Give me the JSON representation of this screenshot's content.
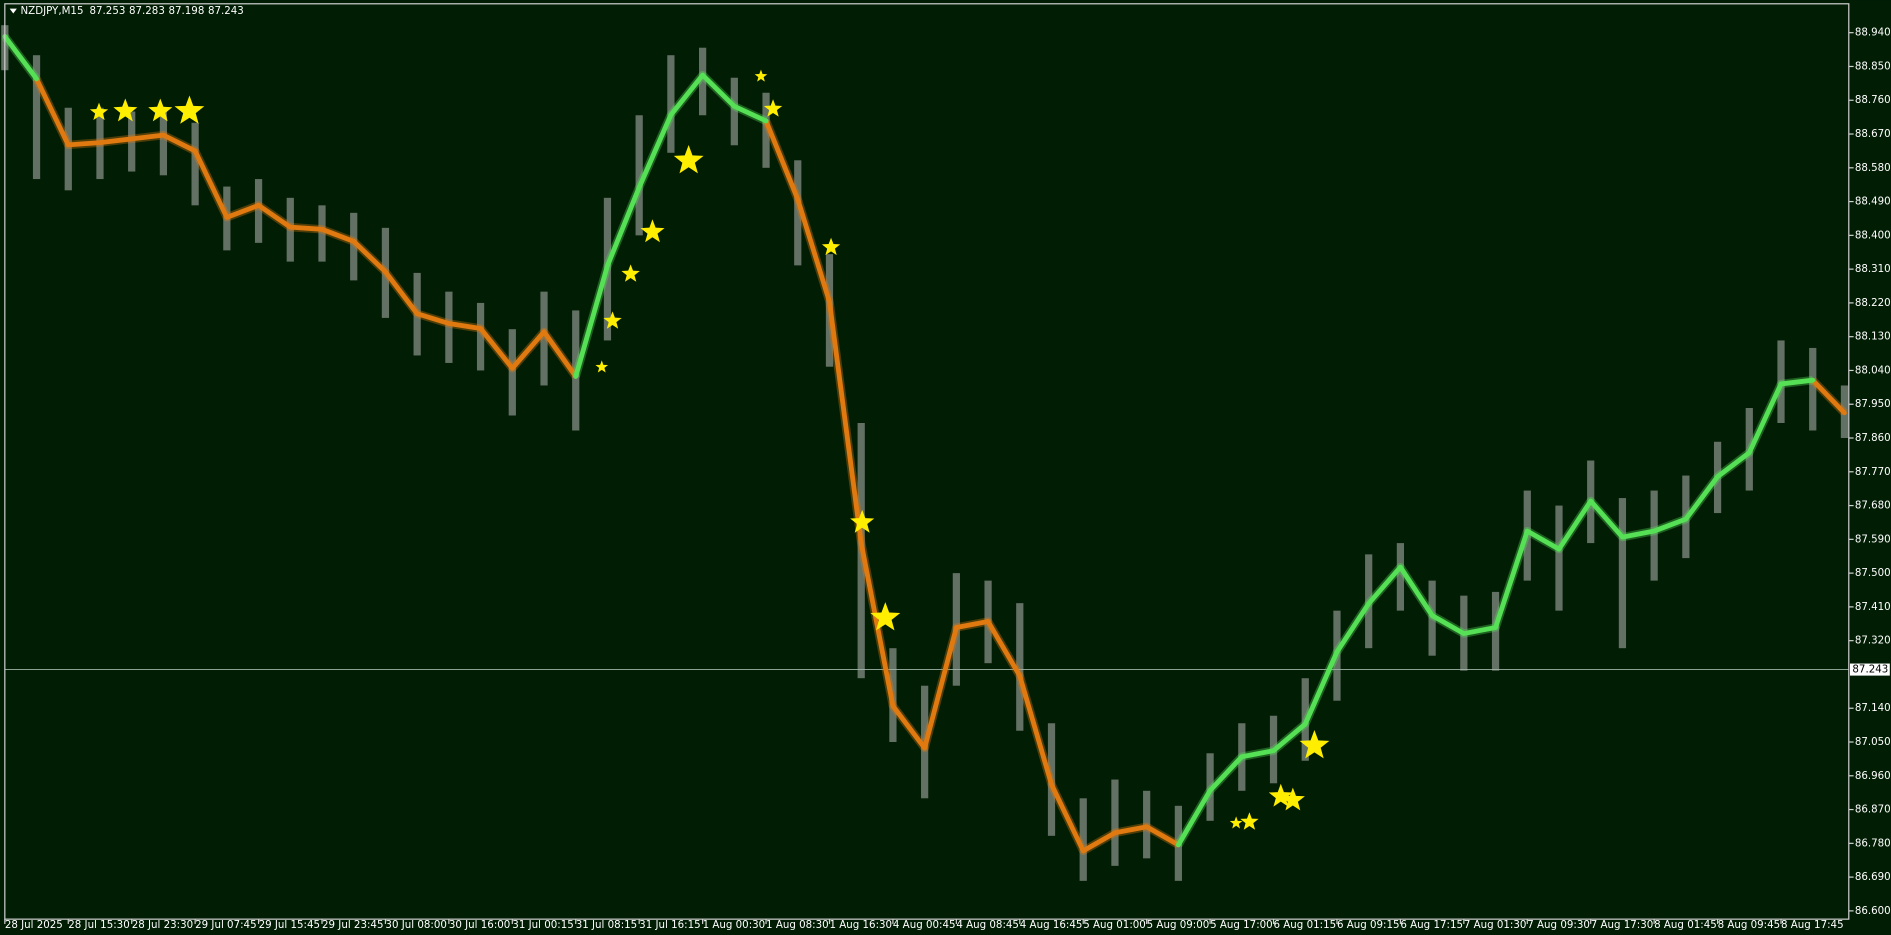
{
  "chart_data": {
    "type": "line",
    "title": "NZDJPY,M15",
    "ohlc": [
      87.253,
      87.283,
      87.198,
      87.243
    ],
    "categories": [
      "28 Jul 2025",
      null,
      "28 Jul 15:30",
      null,
      "28 Jul 23:30",
      null,
      "29 Jul 07:45",
      null,
      "29 Jul 15:45",
      null,
      "29 Jul 23:45",
      null,
      "30 Jul 08:00",
      null,
      "30 Jul 16:00",
      null,
      "31 Jul 00:15",
      null,
      "31 Jul 08:15",
      null,
      "31 Jul 16:15",
      null,
      "1 Aug 00:30",
      null,
      "1 Aug 08:30",
      null,
      "1 Aug 16:30",
      null,
      "4 Aug 00:45",
      null,
      "4 Aug 08:45",
      null,
      "4 Aug 16:45",
      null,
      "5 Aug 01:00",
      null,
      "5 Aug 09:00",
      null,
      "5 Aug 17:00",
      null,
      "6 Aug 01:15",
      null,
      "6 Aug 09:15",
      null,
      "6 Aug 17:15",
      null,
      "7 Aug 01:30",
      null,
      "7 Aug 09:30",
      null,
      "7 Aug 17:30",
      null,
      "8 Aug 01:45",
      null,
      "8 Aug 09:45",
      null,
      "8 Aug 17:45",
      null,
      null
    ],
    "series": [
      {
        "color": "#e07a10",
        "values": [
          null,
          88.817,
          88.641,
          88.647,
          88.657,
          88.667,
          88.625,
          88.448,
          88.48,
          88.422,
          88.416,
          88.384,
          88.303,
          88.191,
          88.165,
          88.152,
          88.046,
          88.143,
          88.024,
          null,
          null,
          null,
          null,
          null,
          88.705,
          88.496,
          88.223,
          87.58,
          87.146,
          87.034,
          87.355,
          87.371,
          87.226,
          86.937,
          86.76,
          86.808,
          86.824,
          86.776,
          null,
          null,
          null,
          null,
          null,
          null,
          null,
          null,
          null,
          null,
          null,
          null,
          null,
          null,
          null,
          null,
          null,
          null,
          null,
          88.014,
          87.927
        ]
      },
      {
        "color": "#55e055",
        "values": [
          88.93,
          88.817,
          null,
          null,
          null,
          null,
          null,
          null,
          null,
          null,
          null,
          null,
          null,
          null,
          null,
          null,
          null,
          null,
          88.024,
          88.319,
          88.528,
          88.721,
          88.827,
          88.744,
          88.705,
          null,
          null,
          null,
          null,
          null,
          null,
          null,
          null,
          null,
          null,
          null,
          null,
          86.776,
          86.921,
          87.011,
          87.027,
          87.098,
          87.29,
          87.419,
          87.516,
          87.387,
          87.339,
          87.355,
          87.612,
          87.564,
          87.692,
          87.596,
          87.612,
          87.644,
          87.757,
          87.821,
          88.004,
          88.014,
          null
        ]
      }
    ],
    "bars": {
      "color": "#b4b4b4",
      "high": [
        88.96,
        88.88,
        88.74,
        88.74,
        88.73,
        88.74,
        88.7,
        88.53,
        88.55,
        88.5,
        88.48,
        88.46,
        88.42,
        88.3,
        88.25,
        88.22,
        88.15,
        88.25,
        88.2,
        88.5,
        88.72,
        88.88,
        88.9,
        88.82,
        88.78,
        88.6,
        88.35,
        87.9,
        87.3,
        87.2,
        87.5,
        87.48,
        87.42,
        87.1,
        86.9,
        86.95,
        86.92,
        86.88,
        87.02,
        87.1,
        87.12,
        87.22,
        87.4,
        87.55,
        87.58,
        87.48,
        87.44,
        87.45,
        87.72,
        87.68,
        87.8,
        87.7,
        87.72,
        87.76,
        87.85,
        87.94,
        88.12,
        88.1,
        88.0
      ],
      "low": [
        88.84,
        88.55,
        88.52,
        88.55,
        88.57,
        88.56,
        88.48,
        88.36,
        88.38,
        88.33,
        88.33,
        88.28,
        88.18,
        88.08,
        88.06,
        88.04,
        87.92,
        88.0,
        87.88,
        88.12,
        88.4,
        88.62,
        88.72,
        88.64,
        88.58,
        88.32,
        88.05,
        87.22,
        87.05,
        86.9,
        87.2,
        87.26,
        87.08,
        86.8,
        86.68,
        86.72,
        86.74,
        86.68,
        86.84,
        86.92,
        86.94,
        87.0,
        87.16,
        87.3,
        87.4,
        87.28,
        87.24,
        87.24,
        87.48,
        87.4,
        87.58,
        87.3,
        87.48,
        87.54,
        87.66,
        87.72,
        87.9,
        87.88,
        87.86
      ]
    },
    "stars": {
      "color": "#ffee00",
      "x": [
        2.97,
        3.8,
        4.9,
        5.82,
        18.82,
        19.16,
        19.73,
        20.42,
        21.56,
        23.84,
        24.22,
        26.05,
        27.03,
        27.76,
        38.82,
        39.24,
        40.23,
        40.61,
        41.29
      ],
      "y": [
        88.728,
        88.731,
        88.731,
        88.731,
        88.049,
        88.172,
        88.297,
        88.409,
        88.599,
        88.824,
        88.737,
        88.368,
        87.635,
        87.381,
        86.834,
        86.837,
        86.905,
        86.895,
        87.04
      ],
      "size": [
        2,
        3,
        3,
        4,
        1,
        2,
        2,
        3,
        4,
        1,
        2,
        2,
        3,
        4,
        1,
        2,
        3,
        3,
        4
      ]
    },
    "ylim": [
      86.578,
      89.017
    ],
    "yticks": [
      {
        "value": 88.94,
        "label": "88.940"
      },
      {
        "value": 88.85,
        "label": "88.850"
      },
      {
        "value": 88.76,
        "label": "88.760"
      },
      {
        "value": 88.67,
        "label": "88.670"
      },
      {
        "value": 88.58,
        "label": "88.580"
      },
      {
        "value": 88.49,
        "label": "88.490"
      },
      {
        "value": 88.4,
        "label": "88.400"
      },
      {
        "value": 88.31,
        "label": "88.310"
      },
      {
        "value": 88.22,
        "label": "88.220"
      },
      {
        "value": 88.13,
        "label": "88.130"
      },
      {
        "value": 88.04,
        "label": "88.040"
      },
      {
        "value": 87.95,
        "label": "87.950"
      },
      {
        "value": 87.86,
        "label": "87.860"
      },
      {
        "value": 87.77,
        "label": "87.770"
      },
      {
        "value": 87.68,
        "label": "87.680"
      },
      {
        "value": 87.59,
        "label": "87.590"
      },
      {
        "value": 87.5,
        "label": "87.500"
      },
      {
        "value": 87.41,
        "label": "87.410"
      },
      {
        "value": 87.32,
        "label": "87.320"
      },
      {
        "value": 87.14,
        "label": "87.140"
      },
      {
        "value": 87.05,
        "label": "87.050"
      },
      {
        "value": 86.96,
        "label": "86.960"
      },
      {
        "value": 86.87,
        "label": "86.870"
      },
      {
        "value": 86.78,
        "label": "86.780"
      },
      {
        "value": 86.69,
        "label": "86.690"
      },
      {
        "value": 86.6,
        "label": "86.600"
      }
    ]
  }
}
